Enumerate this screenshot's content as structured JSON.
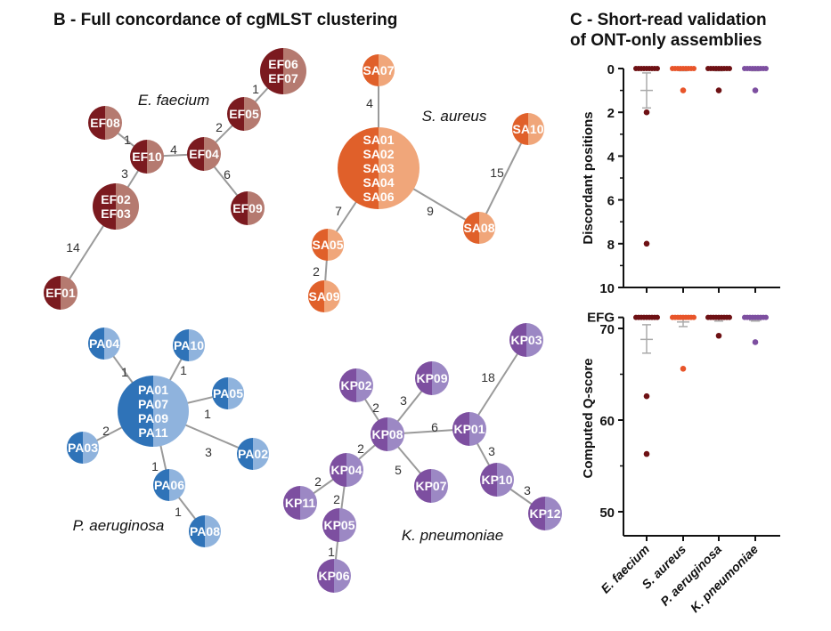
{
  "panel_b": {
    "title": "B - Full concordance of cgMLST clustering",
    "groups": [
      {
        "id": "ef",
        "name": "E. faecium",
        "dark": "#7b1a1f",
        "light": "#b57a70",
        "nodes": [
          {
            "id": "EF06_07",
            "lines": [
              "EF06",
              "EF07"
            ]
          },
          {
            "id": "EF05",
            "lines": [
              "EF05"
            ]
          },
          {
            "id": "EF08",
            "lines": [
              "EF08"
            ]
          },
          {
            "id": "EF10",
            "lines": [
              "EF10"
            ]
          },
          {
            "id": "EF04",
            "lines": [
              "EF04"
            ]
          },
          {
            "id": "EF02_03",
            "lines": [
              "EF02",
              "EF03"
            ]
          },
          {
            "id": "EF09",
            "lines": [
              "EF09"
            ]
          },
          {
            "id": "EF01",
            "lines": [
              "EF01"
            ]
          }
        ],
        "edges": [
          [
            "EF05",
            "EF06_07",
            "1"
          ],
          [
            "EF04",
            "EF05",
            "2"
          ],
          [
            "EF08",
            "EF10",
            "1"
          ],
          [
            "EF10",
            "EF04",
            "4"
          ],
          [
            "EF10",
            "EF02_03",
            "3"
          ],
          [
            "EF04",
            "EF09",
            "6"
          ],
          [
            "EF02_03",
            "EF01",
            "14"
          ]
        ]
      },
      {
        "id": "sa",
        "name": "S. aureus",
        "dark": "#e0602a",
        "light": "#f0a67a",
        "nodes": [
          {
            "id": "SA07",
            "lines": [
              "SA07"
            ]
          },
          {
            "id": "SA_big",
            "lines": [
              "SA01",
              "SA02",
              "SA03",
              "SA04",
              "SA06"
            ]
          },
          {
            "id": "SA10",
            "lines": [
              "SA10"
            ]
          },
          {
            "id": "SA08",
            "lines": [
              "SA08"
            ]
          },
          {
            "id": "SA05",
            "lines": [
              "SA05"
            ]
          },
          {
            "id": "SA09",
            "lines": [
              "SA09"
            ]
          }
        ],
        "edges": [
          [
            "SA07",
            "SA_big",
            "4"
          ],
          [
            "SA10",
            "SA08",
            "15"
          ],
          [
            "SA_big",
            "SA08",
            "9"
          ],
          [
            "SA_big",
            "SA05",
            "7"
          ],
          [
            "SA05",
            "SA09",
            "2"
          ]
        ]
      },
      {
        "id": "pa",
        "name": "P. aeruginosa",
        "dark": "#2f73b8",
        "light": "#8fb3dd",
        "nodes": [
          {
            "id": "PA_big",
            "lines": [
              "PA01",
              "PA07",
              "PA09",
              "PA11"
            ]
          },
          {
            "id": "PA04",
            "lines": [
              "PA04"
            ]
          },
          {
            "id": "PA10",
            "lines": [
              "PA10"
            ]
          },
          {
            "id": "PA05",
            "lines": [
              "PA05"
            ]
          },
          {
            "id": "PA02",
            "lines": [
              "PA02"
            ]
          },
          {
            "id": "PA03",
            "lines": [
              "PA03"
            ]
          },
          {
            "id": "PA06",
            "lines": [
              "PA06"
            ]
          },
          {
            "id": "PA08",
            "lines": [
              "PA08"
            ]
          }
        ],
        "edges": [
          [
            "PA04",
            "PA_big",
            "1"
          ],
          [
            "PA10",
            "PA_big",
            "1"
          ],
          [
            "PA05",
            "PA_big",
            "1"
          ],
          [
            "PA02",
            "PA_big",
            "3"
          ],
          [
            "PA03",
            "PA_big",
            "2"
          ],
          [
            "PA06",
            "PA_big",
            "1"
          ],
          [
            "PA06",
            "PA08",
            "1"
          ]
        ]
      },
      {
        "id": "kp",
        "name": "K. pneumoniae",
        "dark": "#7d4fa0",
        "light": "#9c88c4",
        "nodes": [
          {
            "id": "KP03",
            "lines": [
              "KP03"
            ]
          },
          {
            "id": "KP02",
            "lines": [
              "KP02"
            ]
          },
          {
            "id": "KP09",
            "lines": [
              "KP09"
            ]
          },
          {
            "id": "KP08",
            "lines": [
              "KP08"
            ]
          },
          {
            "id": "KP01",
            "lines": [
              "KP01"
            ]
          },
          {
            "id": "KP04",
            "lines": [
              "KP04"
            ]
          },
          {
            "id": "KP07",
            "lines": [
              "KP07"
            ]
          },
          {
            "id": "KP10",
            "lines": [
              "KP10"
            ]
          },
          {
            "id": "KP11",
            "lines": [
              "KP11"
            ]
          },
          {
            "id": "KP05",
            "lines": [
              "KP05"
            ]
          },
          {
            "id": "KP12",
            "lines": [
              "KP12"
            ]
          },
          {
            "id": "KP06",
            "lines": [
              "KP06"
            ]
          }
        ],
        "edges": [
          [
            "KP03",
            "KP01",
            "18"
          ],
          [
            "KP09",
            "KP08",
            "3"
          ],
          [
            "KP02",
            "KP08",
            "2"
          ],
          [
            "KP08",
            "KP01",
            "6"
          ],
          [
            "KP08",
            "KP04",
            "2"
          ],
          [
            "KP01",
            "KP10",
            "3"
          ],
          [
            "KP08",
            "KP07",
            "5"
          ],
          [
            "KP04",
            "KP11",
            "2"
          ],
          [
            "KP04",
            "KP05",
            "2"
          ],
          [
            "KP10",
            "KP12",
            "3"
          ],
          [
            "KP05",
            "KP06",
            "1"
          ]
        ]
      }
    ]
  },
  "panel_c": {
    "title_line1": "C - Short-read validation",
    "title_line2": "of ONT-only assemblies"
  },
  "chart_data": [
    {
      "type": "scatter",
      "ylabel": "Discordant positions",
      "yaxis_inverted": true,
      "ylim": [
        0,
        10
      ],
      "yticks": [
        0,
        2,
        4,
        6,
        8,
        10
      ],
      "categories": [
        "E. faecium",
        "S. aureus",
        "P. aeruginosa",
        "K. pneumoniae"
      ],
      "colors": [
        "#6e1114",
        "#e8552a",
        "#6e1114",
        "#7d4fa0"
      ],
      "series": [
        {
          "category": "E. faecium",
          "cluster_value": 0,
          "outliers": [
            2,
            8
          ],
          "mean": 1,
          "error": [
            0.2,
            1.8
          ]
        },
        {
          "category": "S. aureus",
          "cluster_value": 0,
          "outliers": [
            1
          ],
          "mean": 0.05,
          "error": [
            0,
            0.1
          ]
        },
        {
          "category": "P. aeruginosa",
          "cluster_value": 0,
          "outliers": [
            1
          ],
          "mean": 0.05,
          "error": [
            0,
            0.1
          ]
        },
        {
          "category": "K. pneumoniae",
          "cluster_value": 0,
          "outliers": [
            1
          ],
          "mean": 0.05,
          "error": [
            0,
            0.1
          ]
        }
      ]
    },
    {
      "type": "scatter",
      "ylabel": "Computed Q-score",
      "ylim": [
        47.4,
        71.2
      ],
      "yticks": [
        50,
        60,
        70
      ],
      "top_tick_label": "EFG",
      "top_tick_value": 71.2,
      "categories": [
        "E. faecium",
        "S. aureus",
        "P. aeruginosa",
        "K. pneumoniae"
      ],
      "colors": [
        "#6e1114",
        "#e8552a",
        "#6e1114",
        "#7d4fa0"
      ],
      "series": [
        {
          "category": "E. faecium",
          "cluster_value": 71.2,
          "outliers": [
            62.6,
            56.3
          ],
          "mean": 68.8,
          "error": [
            67.3,
            70.4
          ]
        },
        {
          "category": "S. aureus",
          "cluster_value": 71.2,
          "outliers": [
            65.6
          ],
          "mean": 70.7,
          "error": [
            70.2,
            71.0
          ]
        },
        {
          "category": "P. aeruginosa",
          "cluster_value": 71.2,
          "outliers": [
            69.2
          ],
          "mean": 71.0,
          "error": [
            70.8,
            71.1
          ]
        },
        {
          "category": "K. pneumoniae",
          "cluster_value": 71.2,
          "outliers": [
            68.5
          ],
          "mean": 70.9,
          "error": [
            70.8,
            71.1
          ]
        }
      ]
    }
  ]
}
